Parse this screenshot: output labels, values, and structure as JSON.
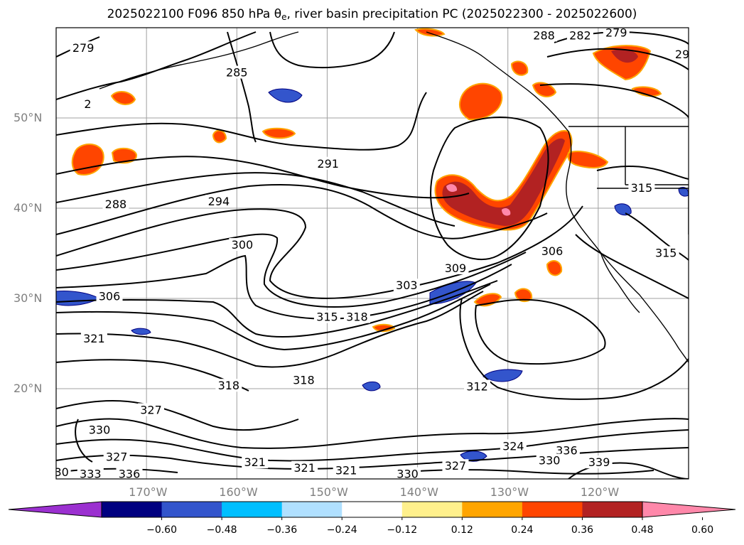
{
  "title": {
    "prefix": "2025022100 F096 850 hPa θ",
    "subscript": "e",
    "suffix": ", river basin precipitation PC (2025022300 - 2025022600)"
  },
  "map": {
    "lat_ticks": [
      {
        "label": "50°N",
        "lat": 50
      },
      {
        "label": "40°N",
        "lat": 40
      },
      {
        "label": "30°N",
        "lat": 30
      },
      {
        "label": "20°N",
        "lat": 20
      }
    ],
    "lon_ticks": [
      {
        "label": "170°W",
        "lon": -170
      },
      {
        "label": "160°W",
        "lon": -160
      },
      {
        "label": "150°W",
        "lon": -150
      },
      {
        "label": "140°W",
        "lon": -140
      },
      {
        "label": "130°W",
        "lon": -130
      },
      {
        "label": "120°W",
        "lon": -120
      }
    ],
    "extent": {
      "lon_min": -180,
      "lon_max": -110,
      "lat_min": 10,
      "lat_max": 60
    },
    "contour_labels": [
      {
        "text": "279",
        "lon": -177.0,
        "lat": 57.7
      },
      {
        "text": "285",
        "lon": -160.0,
        "lat": 55.0
      },
      {
        "text": "288",
        "lon": -126.0,
        "lat": 59.1
      },
      {
        "text": "282",
        "lon": -122.0,
        "lat": 59.1
      },
      {
        "text": "279",
        "lon": -118.0,
        "lat": 59.4
      },
      {
        "text": "291",
        "lon": -149.9,
        "lat": 44.9
      },
      {
        "text": "294",
        "lon": -162.0,
        "lat": 40.7
      },
      {
        "text": "288",
        "lon": -173.4,
        "lat": 40.4
      },
      {
        "text": "300",
        "lon": -159.4,
        "lat": 35.9
      },
      {
        "text": "306",
        "lon": -125.1,
        "lat": 35.2
      },
      {
        "text": "309",
        "lon": -135.8,
        "lat": 33.3
      },
      {
        "text": "303",
        "lon": -141.2,
        "lat": 31.4
      },
      {
        "text": "306",
        "lon": -174.1,
        "lat": 30.2
      },
      {
        "text": "315",
        "lon": -150.0,
        "lat": 27.9
      },
      {
        "text": "318",
        "lon": -146.7,
        "lat": 27.9
      },
      {
        "text": "321",
        "lon": -175.8,
        "lat": 25.5
      },
      {
        "text": "318",
        "lon": -152.6,
        "lat": 20.9
      },
      {
        "text": "318",
        "lon": -160.9,
        "lat": 20.3
      },
      {
        "text": "312",
        "lon": -133.4,
        "lat": 20.2
      },
      {
        "text": "327",
        "lon": -169.5,
        "lat": 17.6
      },
      {
        "text": "330",
        "lon": -175.2,
        "lat": 15.4
      },
      {
        "text": "324",
        "lon": -129.4,
        "lat": 13.6
      },
      {
        "text": "327",
        "lon": -173.3,
        "lat": 12.4
      },
      {
        "text": "336",
        "lon": -123.5,
        "lat": 13.1
      },
      {
        "text": "330",
        "lon": -125.4,
        "lat": 12.0
      },
      {
        "text": "339",
        "lon": -119.9,
        "lat": 11.8
      },
      {
        "text": "321",
        "lon": -158.0,
        "lat": 11.8
      },
      {
        "text": "321",
        "lon": -152.5,
        "lat": 11.2
      },
      {
        "text": "321",
        "lon": -147.9,
        "lat": 10.9
      },
      {
        "text": "327",
        "lon": -135.8,
        "lat": 11.4
      },
      {
        "text": "330",
        "lon": -141.1,
        "lat": 10.5
      },
      {
        "text": "333",
        "lon": -176.2,
        "lat": 10.5
      },
      {
        "text": "336",
        "lon": -171.9,
        "lat": 10.5
      },
      {
        "text": "315",
        "lon": -112.5,
        "lat": 35.0
      },
      {
        "text": "29",
        "lon": -110.7,
        "lat": 57.0
      },
      {
        "text": "30",
        "lon": -179.4,
        "lat": 10.7
      },
      {
        "text": "2",
        "lon": -176.5,
        "lat": 51.5
      },
      {
        "text": "315",
        "lon": -115.2,
        "lat": 42.2
      }
    ]
  },
  "colorbar": {
    "ticks": [
      "−0.60",
      "−0.48",
      "−0.36",
      "−0.24",
      "−0.12",
      "0.12",
      "0.24",
      "0.36",
      "0.48",
      "0.60"
    ],
    "colors": {
      "under": "#9b30d0",
      "bins": [
        "#000080",
        "#3355cc",
        "#00bfff",
        "#b0e0ff",
        "#ffffff",
        "#fff08c",
        "#ffa500",
        "#ff4500",
        "#b22222"
      ],
      "over": "#ff88aa"
    },
    "values": [
      -0.72,
      -0.6,
      -0.48,
      -0.36,
      -0.24,
      -0.12,
      0.12,
      0.24,
      0.36,
      0.48,
      0.6,
      0.72
    ]
  },
  "colors": {
    "contour": "#000000",
    "grid": "#a0a0a0",
    "tick_label": "#7f7f7f"
  }
}
